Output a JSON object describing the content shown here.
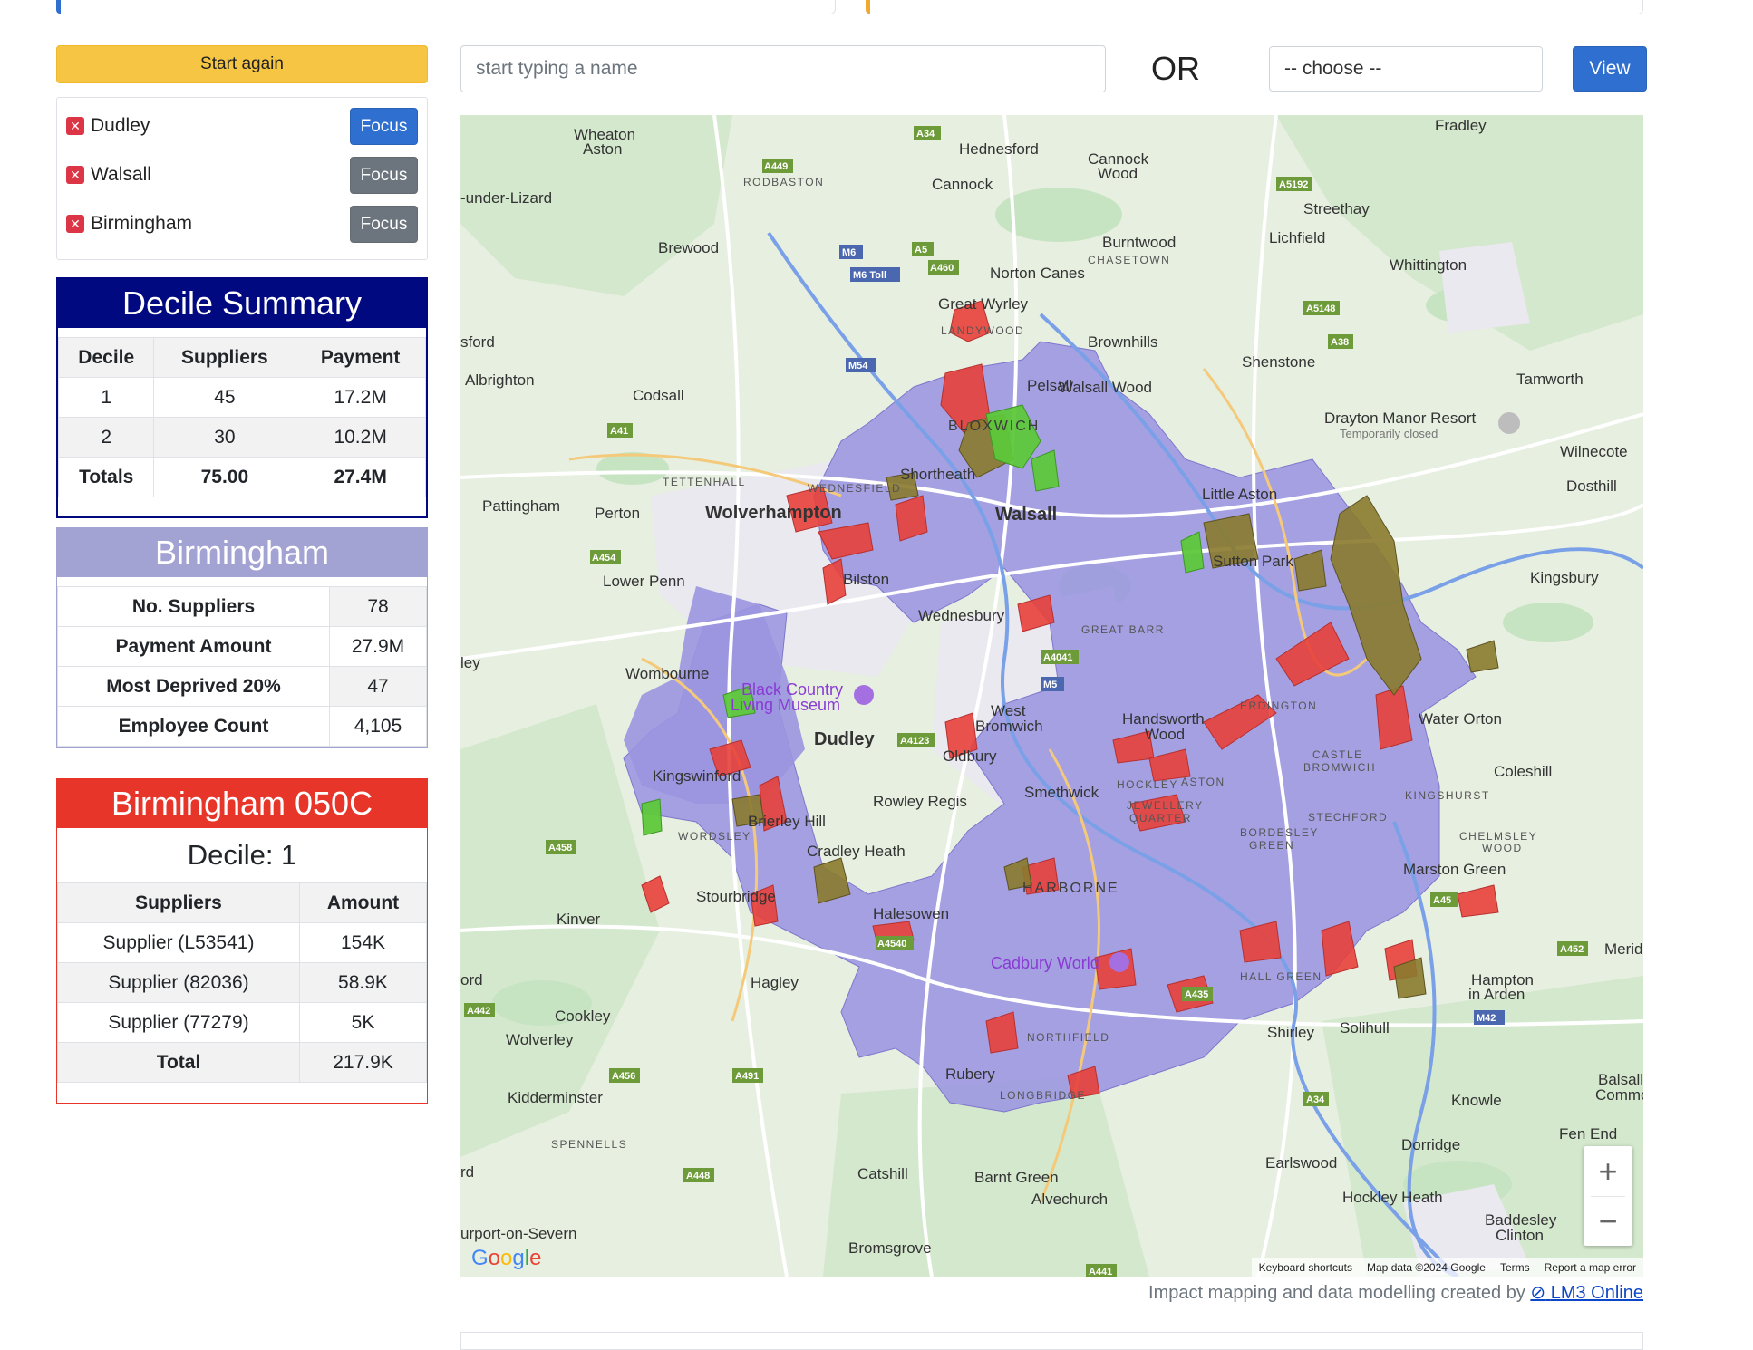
{
  "controls": {
    "start_again": "Start again",
    "search_placeholder": "start typing a name",
    "or": "OR",
    "choose": "-- choose --",
    "view": "View"
  },
  "areas": [
    {
      "name": "Dudley",
      "focus": "Focus",
      "remove": "✕",
      "active": true
    },
    {
      "name": "Walsall",
      "focus": "Focus",
      "remove": "✕",
      "active": false
    },
    {
      "name": "Birmingham",
      "focus": "Focus",
      "remove": "✕",
      "active": false
    }
  ],
  "decile_summary": {
    "title": "Decile Summary",
    "headers": [
      "Decile",
      "Suppliers",
      "Payment"
    ],
    "rows": [
      [
        "1",
        "45",
        "17.2M"
      ],
      [
        "2",
        "30",
        "10.2M"
      ]
    ],
    "totals": [
      "Totals",
      "75.00",
      "27.4M"
    ]
  },
  "area_summary": {
    "title": "Birmingham",
    "rows": [
      [
        "No. Suppliers",
        "78"
      ],
      [
        "Payment Amount",
        "27.9M"
      ],
      [
        "Most Deprived 20%",
        "47"
      ],
      [
        "Employee Count",
        "4,105"
      ]
    ]
  },
  "lsoa": {
    "title": "Birmingham 050C",
    "decile": "Decile: 1",
    "headers": [
      "Suppliers",
      "Amount"
    ],
    "rows": [
      [
        "Supplier (L53541)",
        "154K"
      ],
      [
        "Supplier (82036)",
        "58.9K"
      ],
      [
        "Supplier (77279)",
        "5K"
      ]
    ],
    "total": [
      "Total",
      "217.9K"
    ]
  },
  "map": {
    "labels": {
      "wolverhampton": "Wolverhampton",
      "walsall": "Walsall",
      "dudley": "Dudley",
      "bloxwich": "BLOXWICH",
      "harborne": "HARBORNE",
      "wednesbury": "Wednesbury",
      "bilston": "Bilston",
      "west_bromwich": "West",
      "west_bromwich2": "Bromwich",
      "oldbury": "Oldbury",
      "smethwick": "Smethwick",
      "rowley_regis": "Rowley Regis",
      "cradley_heath": "Cradley Heath",
      "halesowen": "Halesowen",
      "stourbridge": "Stourbridge",
      "kingswinford": "Kingswinford",
      "brierley_hill": "Brierley Hill",
      "wombourne": "Wombourne",
      "lower_penn": "Lower Penn",
      "perton": "Perton",
      "pattingham": "Pattingham",
      "codsall": "Codsall",
      "albrighton": "Albrighton",
      "brewood": "Brewood",
      "wheaton_aston": "Wheaton",
      "wheaton_aston2": "Aston",
      "hednesford": "Hednesford",
      "cannock": "Cannock",
      "cannock_wood": "Cannock",
      "cannock_wood2": "Wood",
      "burntwood": "Burntwood",
      "chasetown": "CHASETOWN",
      "norton_canes": "Norton Canes",
      "great_wyrley": "Great Wyrley",
      "landywood": "LANDYWOOD",
      "brownhills": "Brownhills",
      "pelsall": "Pelsall",
      "walsall_wood": "Walsall Wood",
      "shortheath": "Shortheath",
      "lichfield": "Lichfield",
      "streethay": "Streethay",
      "whittington": "Whittington",
      "fradley": "Fradley",
      "shenstone": "Shenstone",
      "tamworth": "Tamworth",
      "drayton_manor": "Drayton Manor Resort",
      "temporarily_closed": "Temporarily closed",
      "wilnecote": "Wilnecote",
      "dosthill": "Dosthill",
      "little_aston": "Little Aston",
      "sutton_park": "Sutton Park",
      "kingsbury": "Kingsbury",
      "erdington": "ERDINGTON",
      "water_orton": "Water Orton",
      "castle_bromwich": "CASTLE",
      "castle_bromwich2": "BROMWICH",
      "coleshill": "Coleshill",
      "kingshurst": "KINGSHURST",
      "chelmsley_wood": "CHELMSLEY",
      "chelmsley_wood2": "WOOD",
      "marston_green": "Marston Green",
      "stechford": "STECHFORD",
      "bordesley_green": "BORDESLEY",
      "bordesley_green2": "GREEN",
      "handsworth_wood": "Handsworth",
      "handsworth_wood2": "Wood",
      "hockley": "HOCKLEY",
      "aston": "ASTON",
      "jewellery_quarter": "JEWELLERY",
      "jewellery_quarter2": "QUARTER",
      "black_country_museum": "Black Country",
      "black_country_museum2": "Living Museum",
      "cadbury_world": "Cadbury World",
      "northfield": "NORTHFIELD",
      "longbridge": "LONGBRIDGE",
      "rubery": "Rubery",
      "hall_green": "HALL GREEN",
      "shirley": "Shirley",
      "solihull": "Solihull",
      "hampton_in_arden": "Hampton",
      "hampton_in_arden2": "in Arden",
      "meriden": "Meride",
      "knowle": "Knowle",
      "balsall_common": "Balsall",
      "balsall_common2": "Commo",
      "fen_end": "Fen End",
      "dorridge": "Dorridge",
      "earlswood": "Earlswood",
      "hockley_heath": "Hockley Heath",
      "baddesley_clinton": "Baddesley",
      "baddesley_clinton2": "Clinton",
      "barnt_green": "Barnt Green",
      "alvechurch": "Alvechurch",
      "bromsgrove": "Bromsgrove",
      "catshill": "Catshill",
      "hagley": "Hagley",
      "kinver": "Kinver",
      "cookley": "Cookley",
      "wolverley": "Wolverley",
      "kidderminster": "Kidderminster",
      "spennells": "SPENNELLS",
      "stourport": "urport-on-Severn",
      "tettenhall": "TETTENHALL",
      "wednesfield": "WEDNESFIELD",
      "great_barr": "GREAT BARR",
      "wordsley": "WORDSLEY",
      "rodbaston": "RODBASTON",
      "under_lizard": "-under-Lizard",
      "sford": "sford",
      "ley": "ley",
      "ord": "ord",
      "rd": "rd"
    },
    "road_labels": [
      "A34",
      "A449",
      "M6",
      "M6 Toll",
      "A5",
      "A460",
      "A5192",
      "A5148",
      "A38",
      "M54",
      "A41",
      "A454",
      "A4041",
      "M5",
      "A4123",
      "A458",
      "A491",
      "A442",
      "A456",
      "A448",
      "A435",
      "M42",
      "A452",
      "A45",
      "A441",
      "A4540",
      "A34"
    ],
    "zoom_in": "+",
    "zoom_out": "−",
    "google": "Google",
    "attribution": [
      "Keyboard shortcuts",
      "Map data ©2024 Google",
      "Terms",
      "Report a map error"
    ]
  },
  "footer": {
    "credit": "Impact mapping and data modelling created by",
    "link": "LM3 Online"
  },
  "colors": {
    "start_btn": "#f7c544",
    "primary": "#2f6fd0",
    "secondary": "#6c757d",
    "danger": "#dc3545",
    "decile_header": "#00097f",
    "area_header": "#a3a3d3",
    "lsoa_header": "#e8352a",
    "region_fill": "#9b95e0",
    "decile1": "#e8403a",
    "decile2": "#8a7a2e",
    "green_decile": "#5ec83a"
  }
}
